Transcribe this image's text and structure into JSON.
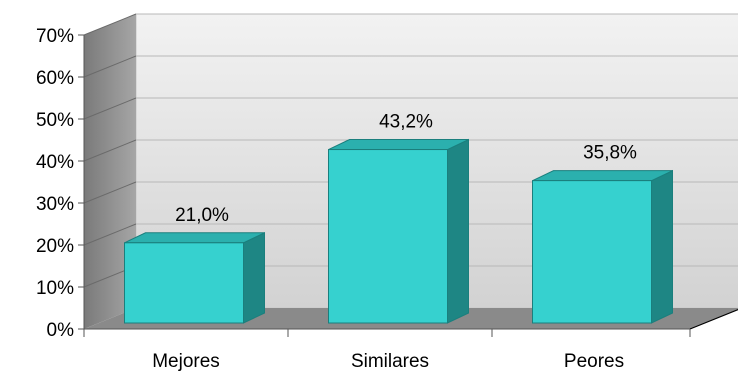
{
  "chart_data": {
    "type": "bar",
    "categories": [
      "Mejores",
      "Similares",
      "Peores"
    ],
    "values": [
      21.0,
      43.2,
      35.8
    ],
    "data_labels": [
      "21,0%",
      "43,2%",
      "35,8%"
    ],
    "y_ticks": [
      0,
      10,
      20,
      30,
      40,
      50,
      60,
      70
    ],
    "y_tick_labels": [
      "0%",
      "10%",
      "20%",
      "30%",
      "40%",
      "50%",
      "60%",
      "70%"
    ],
    "ylim": [
      0,
      70
    ],
    "grid": true,
    "legend": "none",
    "style": "3d-column",
    "colors": {
      "bar_front": "#36D1CF",
      "bar_side": "#1E8684",
      "bar_top": "#2BB0AE",
      "bar_edge": "#1A7F7D",
      "back_wall": "#DCDCDC",
      "side_wall": "#8E8E8E",
      "floor": "#8A8A8A",
      "gridline": "#B8B8B8"
    }
  }
}
